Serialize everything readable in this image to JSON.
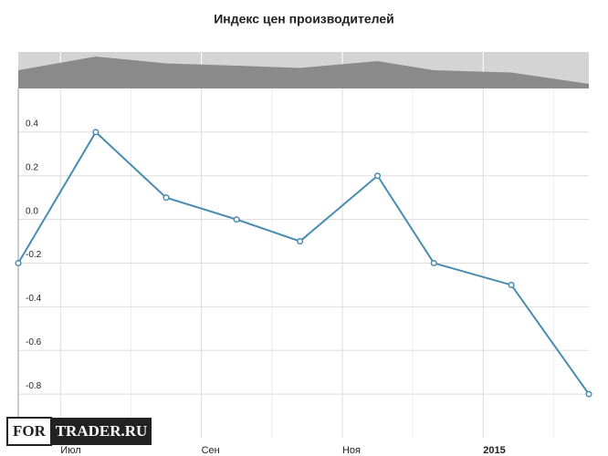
{
  "chart_data": {
    "type": "line",
    "title": "Индекс цен производителей",
    "x": [
      6.4,
      7.5,
      8.5,
      9.5,
      10.4,
      11.5,
      12.3,
      13.4,
      14.5
    ],
    "series": [
      {
        "color": "#4a8bb0",
        "values": [
          -0.2,
          0.4,
          0.1,
          0.0,
          -0.1,
          0.2,
          -0.2,
          -0.3,
          -0.8
        ]
      }
    ],
    "xlim": [
      6.4,
      14.5
    ],
    "xticks": [
      {
        "value": 7,
        "label": "Июл"
      },
      {
        "value": 9,
        "label": "Сен"
      },
      {
        "value": 11,
        "label": "Ноя"
      },
      {
        "value": 13,
        "label": "2015"
      }
    ],
    "minor_xticks": [
      8,
      10,
      12,
      14
    ],
    "ylim": [
      -1.0,
      0.6
    ],
    "yticks": [
      0.4,
      0.2,
      {
        "value": 0,
        "label": "0.0"
      },
      -0.2,
      -0.4,
      -0.6,
      -0.8
    ],
    "grid": true,
    "navigator": true,
    "watermark": [
      "FOR",
      "TRADER.RU"
    ]
  }
}
